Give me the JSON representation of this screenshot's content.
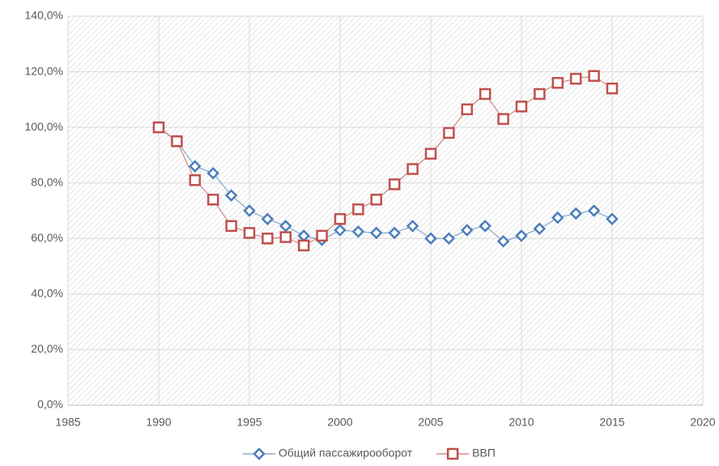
{
  "chart_data": {
    "type": "line",
    "x": [
      1990,
      1991,
      1992,
      1993,
      1994,
      1995,
      1996,
      1997,
      1998,
      1999,
      2000,
      2001,
      2002,
      2003,
      2004,
      2005,
      2006,
      2007,
      2008,
      2009,
      2010,
      2011,
      2012,
      2013,
      2014,
      2015
    ],
    "series": [
      {
        "name": "Общий пассажирооборот",
        "color": "#4a7ebb",
        "marker": "diamond",
        "values": [
          100,
          95,
          86,
          83.5,
          75.5,
          70,
          67,
          64.5,
          61,
          59.5,
          63,
          62.5,
          62,
          62,
          64.5,
          60,
          60,
          63,
          64.5,
          59,
          61,
          63.5,
          67.5,
          69,
          70,
          67
        ]
      },
      {
        "name": "ВВП",
        "color": "#c0504d",
        "marker": "square",
        "values": [
          100,
          95,
          81,
          74,
          64.5,
          62,
          60,
          60.5,
          57.5,
          61,
          67,
          70.5,
          74,
          79.5,
          85,
          90.5,
          98,
          106.5,
          112,
          103,
          107.5,
          112,
          116,
          117.5,
          118.5,
          114
        ]
      }
    ],
    "xlim": [
      1985,
      2020
    ],
    "xticks": [
      1985,
      1990,
      1995,
      2000,
      2005,
      2010,
      2015,
      2020
    ],
    "ylim": [
      0,
      140
    ],
    "yticks": [
      {
        "value": 0,
        "label": "0,0%"
      },
      {
        "value": 20,
        "label": "20,0%"
      },
      {
        "value": 40,
        "label": "40,0%"
      },
      {
        "value": 60,
        "label": "60,0%"
      },
      {
        "value": 80,
        "label": "80,0%"
      },
      {
        "value": 100,
        "label": "100,0%"
      },
      {
        "value": 120,
        "label": "120,0%"
      },
      {
        "value": 140,
        "label": "140,0%"
      }
    ],
    "grid": true,
    "legend": "bottom"
  }
}
